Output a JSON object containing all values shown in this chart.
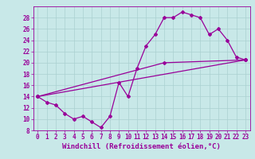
{
  "xlabel": "Windchill (Refroidissement éolien,°C)",
  "bg_color": "#c8e8e8",
  "line_color": "#990099",
  "marker": "D",
  "markersize": 2,
  "linewidth": 0.9,
  "xlim": [
    -0.5,
    23.5
  ],
  "ylim": [
    8,
    30
  ],
  "xticks": [
    0,
    1,
    2,
    3,
    4,
    5,
    6,
    7,
    8,
    9,
    10,
    11,
    12,
    13,
    14,
    15,
    16,
    17,
    18,
    19,
    20,
    21,
    22,
    23
  ],
  "yticks": [
    8,
    10,
    12,
    14,
    16,
    18,
    20,
    22,
    24,
    26,
    28
  ],
  "series1_x": [
    0,
    1,
    2,
    3,
    4,
    5,
    6,
    7,
    8,
    9,
    10,
    11,
    12,
    13,
    14,
    15,
    16,
    17,
    18,
    19,
    20,
    21,
    22,
    23
  ],
  "series1_y": [
    14,
    13,
    12.5,
    11,
    10,
    10.5,
    9.5,
    8.5,
    10.5,
    16.5,
    14,
    19,
    23,
    25,
    28,
    28,
    29,
    28.5,
    28,
    25,
    26,
    24,
    21,
    20.5
  ],
  "series2_x": [
    0,
    23
  ],
  "series2_y": [
    14,
    20.5
  ],
  "series3_x": [
    0,
    14,
    23
  ],
  "series3_y": [
    14,
    20,
    20.5
  ],
  "grid_color": "#aad0d0",
  "tick_fontsize": 5.5,
  "xlabel_fontsize": 6.5
}
